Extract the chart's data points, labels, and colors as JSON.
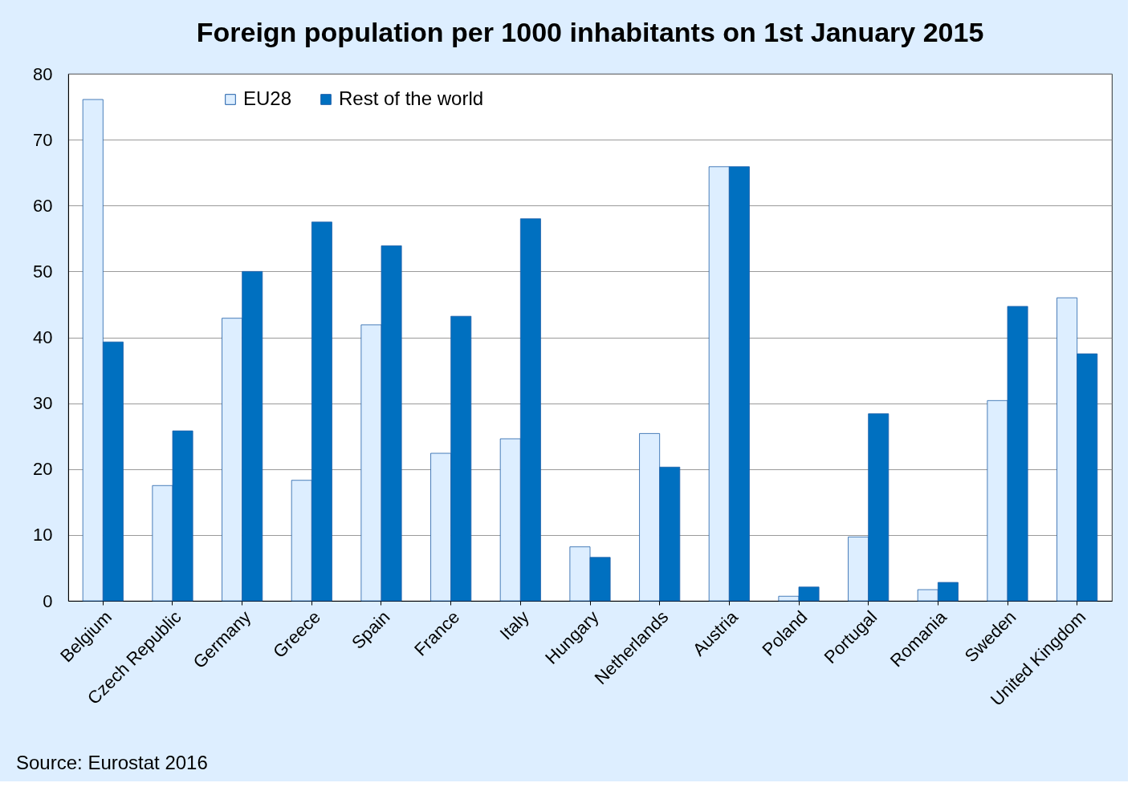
{
  "chart_data": {
    "type": "bar",
    "title": "Foreign population per 1000 inhabitants on 1st January 2015",
    "categories": [
      "Belgium",
      "Czech Republic",
      "Germany",
      "Greece",
      "Spain",
      "France",
      "Italy",
      "Hungary",
      "Netherlands",
      "Austria",
      "Poland",
      "Portugal",
      "Romania",
      "Sweden",
      "United Kingdom"
    ],
    "series": [
      {
        "name": "EU28",
        "color": "#ddeeff",
        "values": [
          76.1,
          17.5,
          42.9,
          18.3,
          41.9,
          22.4,
          24.6,
          8.2,
          25.4,
          65.9,
          0.7,
          9.7,
          1.7,
          30.4,
          46.0
        ]
      },
      {
        "name": "Rest of the world",
        "color": "#0070c0",
        "values": [
          39.3,
          25.8,
          50.0,
          57.5,
          53.9,
          43.2,
          58.0,
          6.6,
          20.3,
          65.9,
          2.1,
          28.4,
          2.8,
          44.7,
          37.5
        ]
      }
    ],
    "ylim": [
      0,
      80
    ],
    "yticks": [
      0,
      10,
      20,
      30,
      40,
      50,
      60,
      70,
      80
    ],
    "grid": "y",
    "legend": "top left",
    "annotations": [
      "Source: Eurostat 2016"
    ]
  }
}
